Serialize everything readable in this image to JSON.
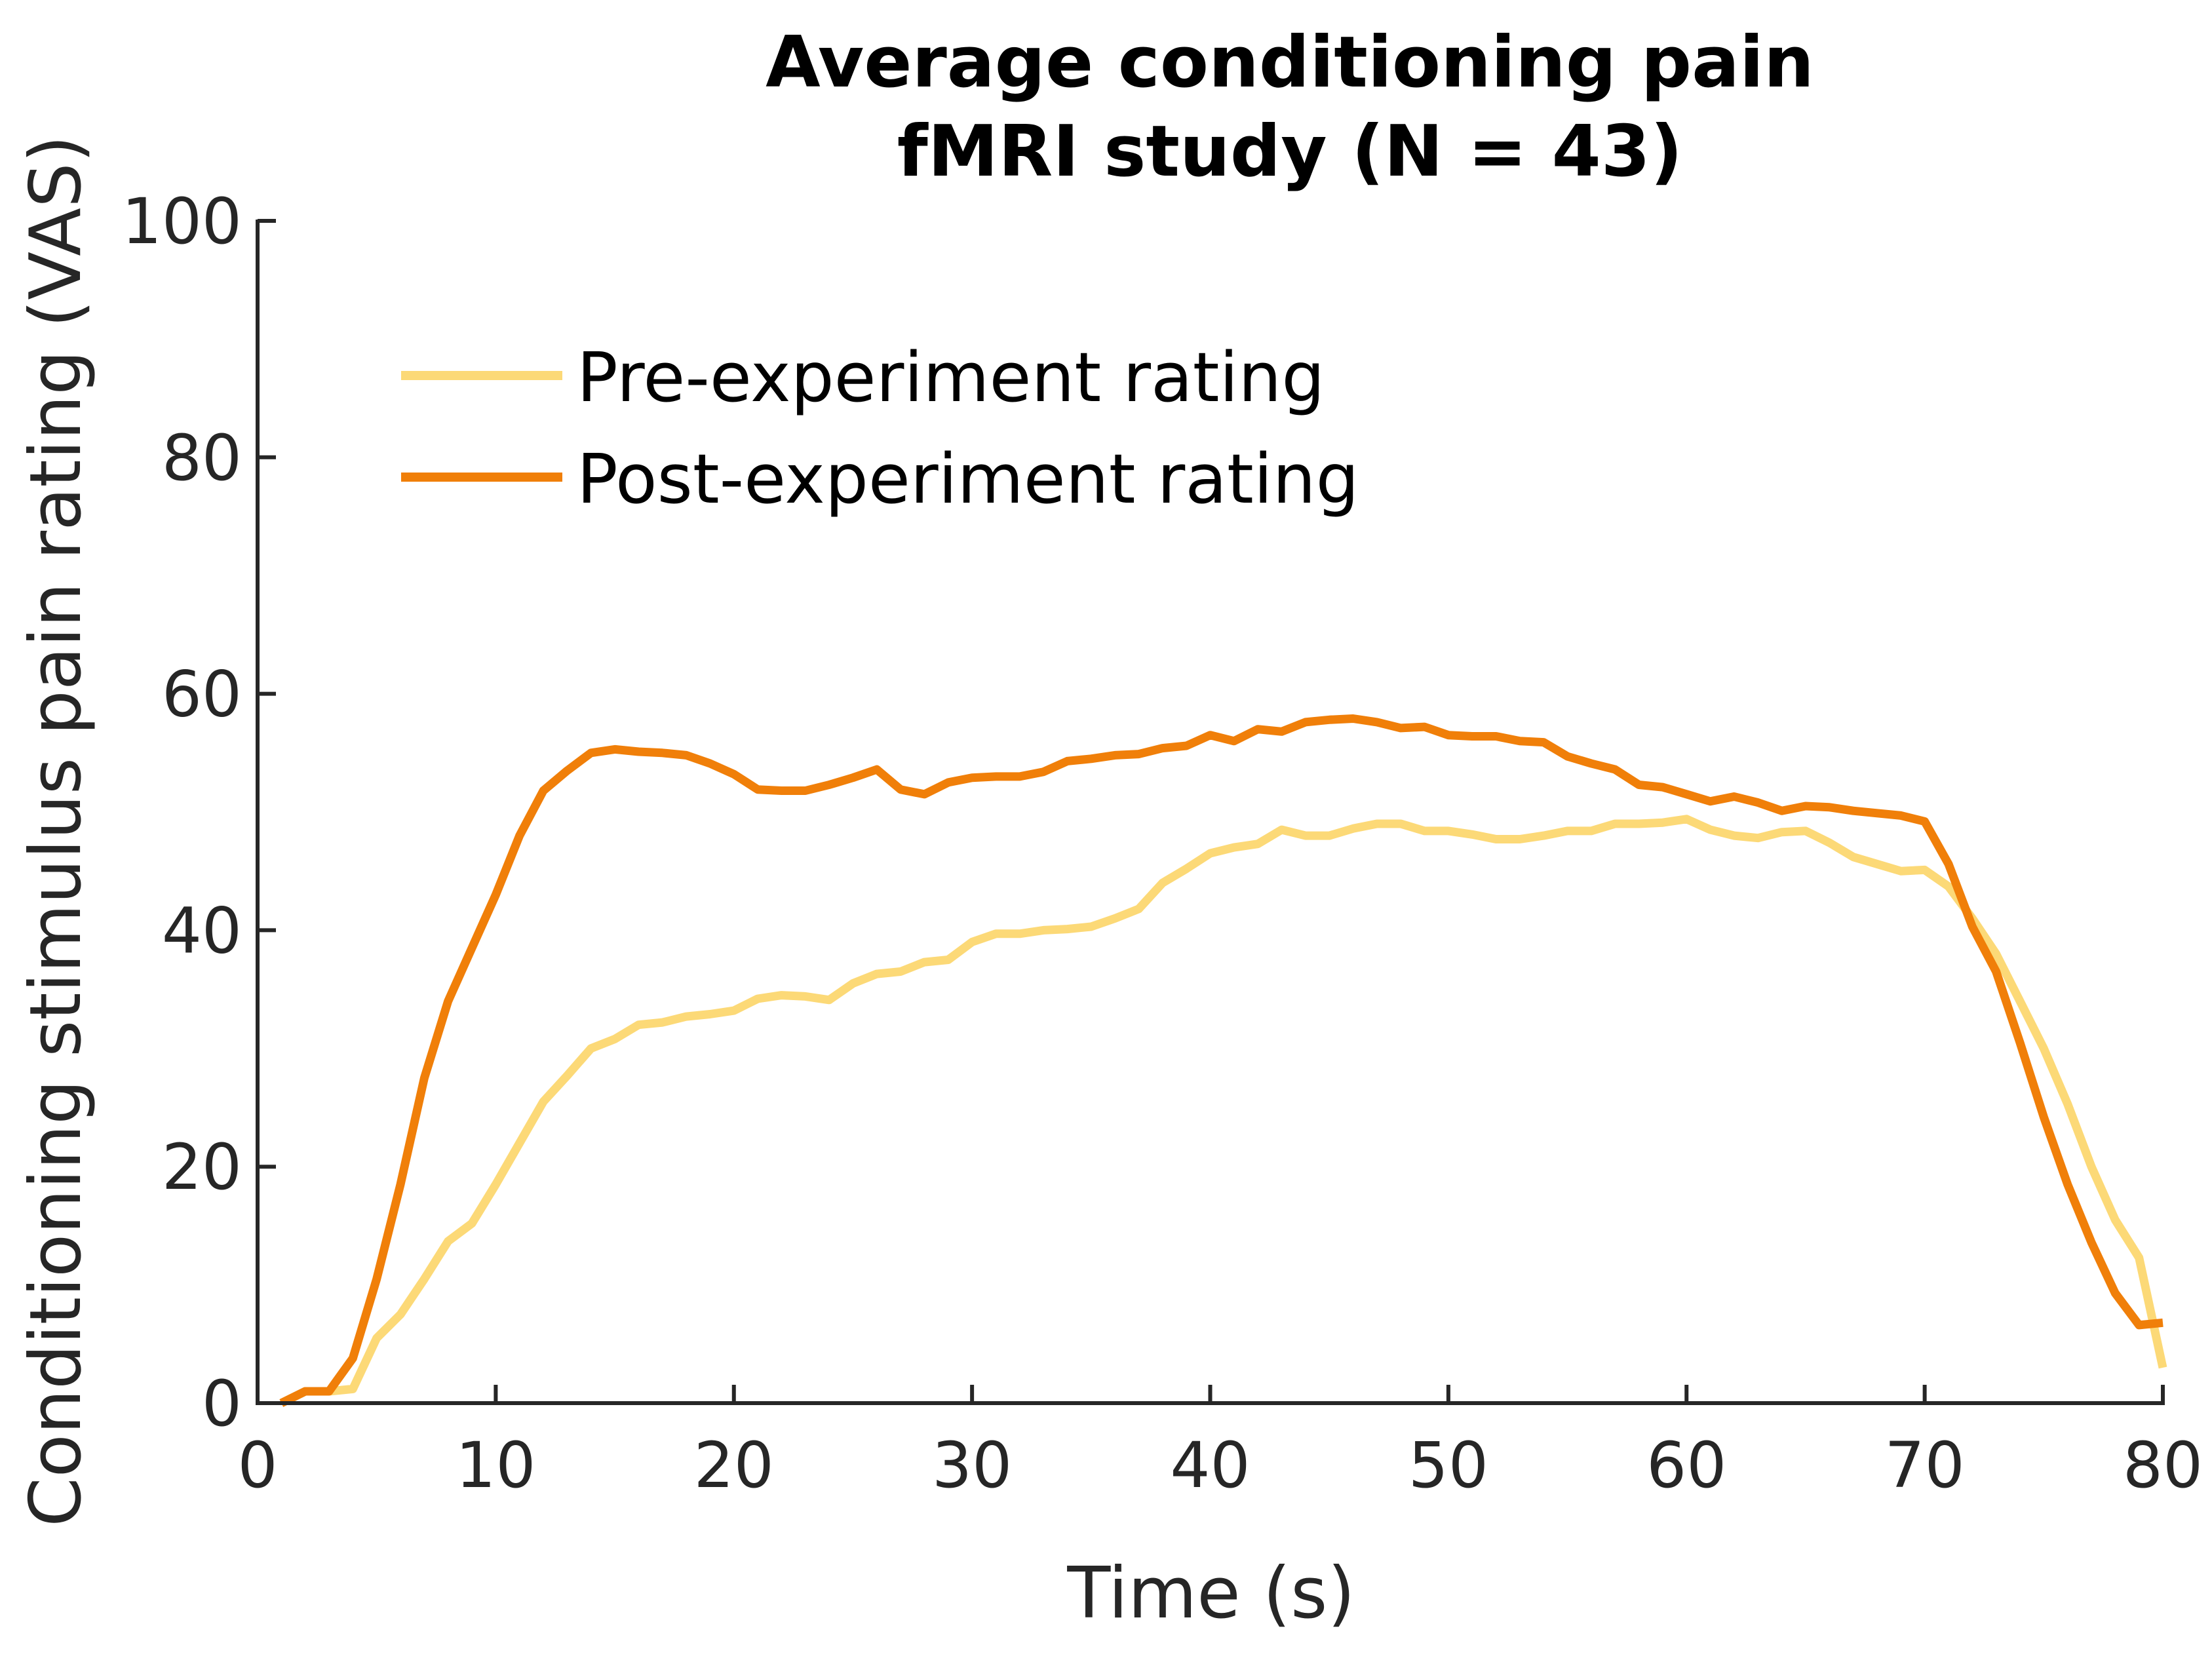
{
  "chart_data": {
    "type": "line",
    "title_lines": [
      "Average conditioning pain",
      "fMRI study (N = 43)"
    ],
    "xlabel": "Time (s)",
    "ylabel": "Conditioning stimulus pain rating (VAS)",
    "xlim": [
      0,
      80
    ],
    "ylim": [
      0,
      100
    ],
    "xticks": [
      0,
      10,
      20,
      30,
      40,
      50,
      60,
      70,
      80
    ],
    "yticks": [
      0,
      20,
      40,
      60,
      80,
      100
    ],
    "grid": false,
    "legend_position": "top-left",
    "series": [
      {
        "name": "Pre-experiment rating",
        "color": "#fcd977",
        "x": [
          1,
          2,
          3,
          4,
          5,
          6,
          7,
          8,
          9,
          10,
          11,
          12,
          13,
          14,
          15,
          16,
          17,
          18,
          19,
          20,
          21,
          22,
          23,
          24,
          25,
          26,
          27,
          28,
          29,
          30,
          31,
          32,
          33,
          34,
          35,
          36,
          37,
          38,
          39,
          40,
          41,
          42,
          43,
          44,
          45,
          46,
          47,
          48,
          49,
          50,
          51,
          52,
          53,
          54,
          55,
          56,
          57,
          58,
          59,
          60,
          61,
          62,
          63,
          64,
          65,
          66,
          67,
          68,
          69,
          70,
          71,
          72,
          73,
          74,
          75,
          76,
          77,
          78,
          79,
          80
        ],
        "y": [
          0,
          1,
          1,
          1.2,
          5.5,
          7.5,
          10.5,
          13.7,
          15.2,
          18.5,
          22,
          25.5,
          27.7,
          30,
          30.8,
          32,
          32.2,
          32.7,
          32.9,
          33.2,
          34.2,
          34.5,
          34.4,
          34.1,
          35.5,
          36.3,
          36.5,
          37.3,
          37.5,
          39,
          39.7,
          39.7,
          40,
          40.1,
          40.3,
          41,
          41.8,
          44,
          45.2,
          46.5,
          47,
          47.3,
          48.5,
          48,
          48,
          48.6,
          49,
          49,
          48.4,
          48.4,
          48.1,
          47.7,
          47.7,
          48,
          48.4,
          48.4,
          49,
          49,
          49.1,
          49.4,
          48.5,
          48,
          47.8,
          48.3,
          48.4,
          47.4,
          46.2,
          45.6,
          45,
          45.1,
          43.7,
          41,
          38,
          34,
          30,
          25.3,
          20,
          15.5,
          12.3,
          3
        ]
      },
      {
        "name": "Post-experiment rating",
        "color": "#f07f09",
        "x": [
          1,
          2,
          3,
          4,
          5,
          6,
          7,
          8,
          9,
          10,
          11,
          12,
          13,
          14,
          15,
          16,
          17,
          18,
          19,
          20,
          21,
          22,
          23,
          24,
          25,
          26,
          27,
          28,
          29,
          30,
          31,
          32,
          33,
          34,
          35,
          36,
          37,
          38,
          39,
          40,
          41,
          42,
          43,
          44,
          45,
          46,
          47,
          48,
          49,
          50,
          51,
          52,
          53,
          54,
          55,
          56,
          57,
          58,
          59,
          60,
          61,
          62,
          63,
          64,
          65,
          66,
          67,
          68,
          69,
          70,
          71,
          72,
          73,
          74,
          75,
          76,
          77,
          78,
          79,
          80
        ],
        "y": [
          0,
          1,
          1,
          3.8,
          10.5,
          18.5,
          27.5,
          34,
          38.5,
          43,
          48,
          51.8,
          53.5,
          55,
          55.3,
          55.1,
          55,
          54.8,
          54.1,
          53.2,
          51.9,
          51.8,
          51.8,
          52.3,
          52.9,
          53.6,
          51.9,
          51.5,
          52.5,
          52.9,
          53,
          53,
          53.4,
          54.3,
          54.5,
          54.8,
          54.9,
          55.4,
          55.6,
          56.5,
          56,
          57,
          56.8,
          57.6,
          57.8,
          57.9,
          57.6,
          57.1,
          57.2,
          56.5,
          56.4,
          56.4,
          56,
          55.9,
          54.7,
          54.1,
          53.6,
          52.3,
          52.1,
          51.5,
          50.9,
          51.3,
          50.8,
          50.1,
          50.5,
          50.4,
          50.1,
          49.9,
          49.7,
          49.2,
          45.6,
          40.3,
          36.5,
          30.5,
          24.2,
          18.5,
          13.6,
          9.3,
          6.6,
          6.8
        ]
      }
    ]
  }
}
